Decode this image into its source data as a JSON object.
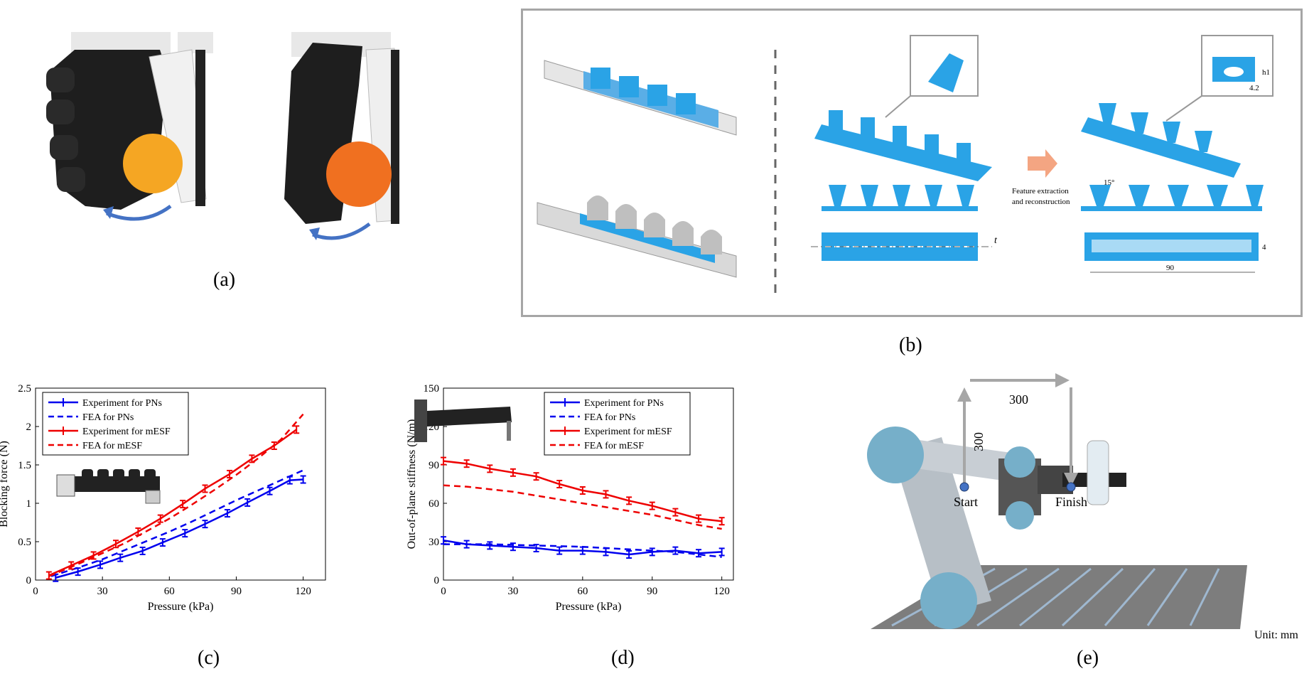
{
  "panels": {
    "a": {
      "label": "(a)"
    },
    "b": {
      "label": "(b)",
      "feature_text_line1": "Feature extraction",
      "feature_text_line2": "and reconstruction",
      "angle_label": "15°",
      "dim_h1": "h1",
      "dim_42": "4.2",
      "dim_t": "t",
      "dim_4": "4",
      "dim_90": "90"
    },
    "c": {
      "label": "(c)"
    },
    "d": {
      "label": "(d)"
    },
    "e": {
      "label": "(e)",
      "dim_horizontal": "300",
      "dim_vertical": "300",
      "start": "Start",
      "finish": "Finish",
      "unit": "Unit: mm"
    }
  },
  "colors": {
    "blue": "#0000ee",
    "red": "#ee0000",
    "part_blue": "#2aa3e6",
    "arrow_blue": "#4472c4",
    "arrow_orange": "#f4a582"
  },
  "chart_data": [
    {
      "type": "line",
      "ylabel": "Blocking force (N)",
      "xlabel": "Pressure (kPa)",
      "xlim": [
        0,
        130
      ],
      "ylim": [
        0,
        2.5
      ],
      "xticks": [
        0,
        30,
        60,
        90,
        120
      ],
      "yticks": [
        0,
        0.5,
        1,
        1.5,
        2,
        2.5
      ],
      "legend": "top-left",
      "series": [
        {
          "name": "Experiment for PNs",
          "style": "solid-errorbar",
          "color": "#0000ee",
          "x": [
            9,
            19,
            29,
            38,
            48,
            57,
            67,
            76,
            86,
            95,
            105,
            114,
            120
          ],
          "y": [
            0.03,
            0.11,
            0.2,
            0.29,
            0.38,
            0.49,
            0.61,
            0.73,
            0.87,
            1.01,
            1.16,
            1.3,
            1.31
          ]
        },
        {
          "name": "FEA for PNs",
          "style": "dashed",
          "color": "#0000ee",
          "x": [
            7,
            20,
            30,
            40,
            50,
            60,
            70,
            80,
            90,
            100,
            110,
            120
          ],
          "y": [
            0.05,
            0.17,
            0.27,
            0.39,
            0.51,
            0.63,
            0.76,
            0.9,
            1.04,
            1.17,
            1.3,
            1.43
          ]
        },
        {
          "name": "Experiment for mESF",
          "style": "solid-errorbar",
          "color": "#ee0000",
          "x": [
            6,
            16,
            26,
            36,
            46,
            56,
            66,
            76,
            87,
            97,
            107,
            117
          ],
          "y": [
            0.06,
            0.19,
            0.32,
            0.47,
            0.63,
            0.8,
            0.99,
            1.19,
            1.38,
            1.58,
            1.75,
            1.96
          ]
        },
        {
          "name": "FEA for mESF",
          "style": "dashed",
          "color": "#ee0000",
          "x": [
            6,
            20,
            30,
            40,
            50,
            60,
            70,
            80,
            90,
            100,
            110,
            120
          ],
          "y": [
            0.05,
            0.22,
            0.35,
            0.48,
            0.64,
            0.8,
            0.98,
            1.17,
            1.37,
            1.59,
            1.83,
            2.16
          ]
        }
      ]
    },
    {
      "type": "line",
      "ylabel": "Out-of-plane stiffness (N/m)",
      "xlabel": "Pressure (kPa)",
      "xlim": [
        0,
        125
      ],
      "ylim": [
        0,
        150
      ],
      "xticks": [
        0,
        30,
        60,
        90,
        120
      ],
      "yticks": [
        0,
        30,
        60,
        90,
        120,
        150
      ],
      "legend": "top-right",
      "series": [
        {
          "name": "Experiment for PNs",
          "style": "solid-errorbar",
          "color": "#0000ee",
          "x": [
            0,
            10,
            20,
            30,
            40,
            50,
            60,
            70,
            80,
            90,
            100,
            110,
            120
          ],
          "y": [
            31,
            28,
            27,
            26,
            25,
            23,
            23,
            22,
            20,
            22,
            23,
            21,
            22
          ]
        },
        {
          "name": "FEA for PNs",
          "style": "dashed",
          "color": "#0000ee",
          "x": [
            0,
            20,
            40,
            60,
            80,
            100,
            120
          ],
          "y": [
            28,
            28,
            27,
            26,
            24,
            22,
            18
          ]
        },
        {
          "name": "Experiment for mESF",
          "style": "solid-errorbar",
          "color": "#ee0000",
          "x": [
            0,
            10,
            20,
            30,
            40,
            50,
            60,
            70,
            80,
            90,
            100,
            110,
            120
          ],
          "y": [
            93,
            91,
            87,
            84,
            81,
            75,
            70,
            67,
            62,
            58,
            53,
            48,
            46
          ]
        },
        {
          "name": "FEA for mESF",
          "style": "dashed",
          "color": "#ee0000",
          "x": [
            0,
            10,
            20,
            30,
            40,
            50,
            60,
            70,
            80,
            90,
            100,
            110,
            120
          ],
          "y": [
            74,
            73,
            71,
            69,
            66,
            63,
            60,
            57,
            54,
            51,
            47,
            43,
            40
          ]
        }
      ]
    }
  ]
}
